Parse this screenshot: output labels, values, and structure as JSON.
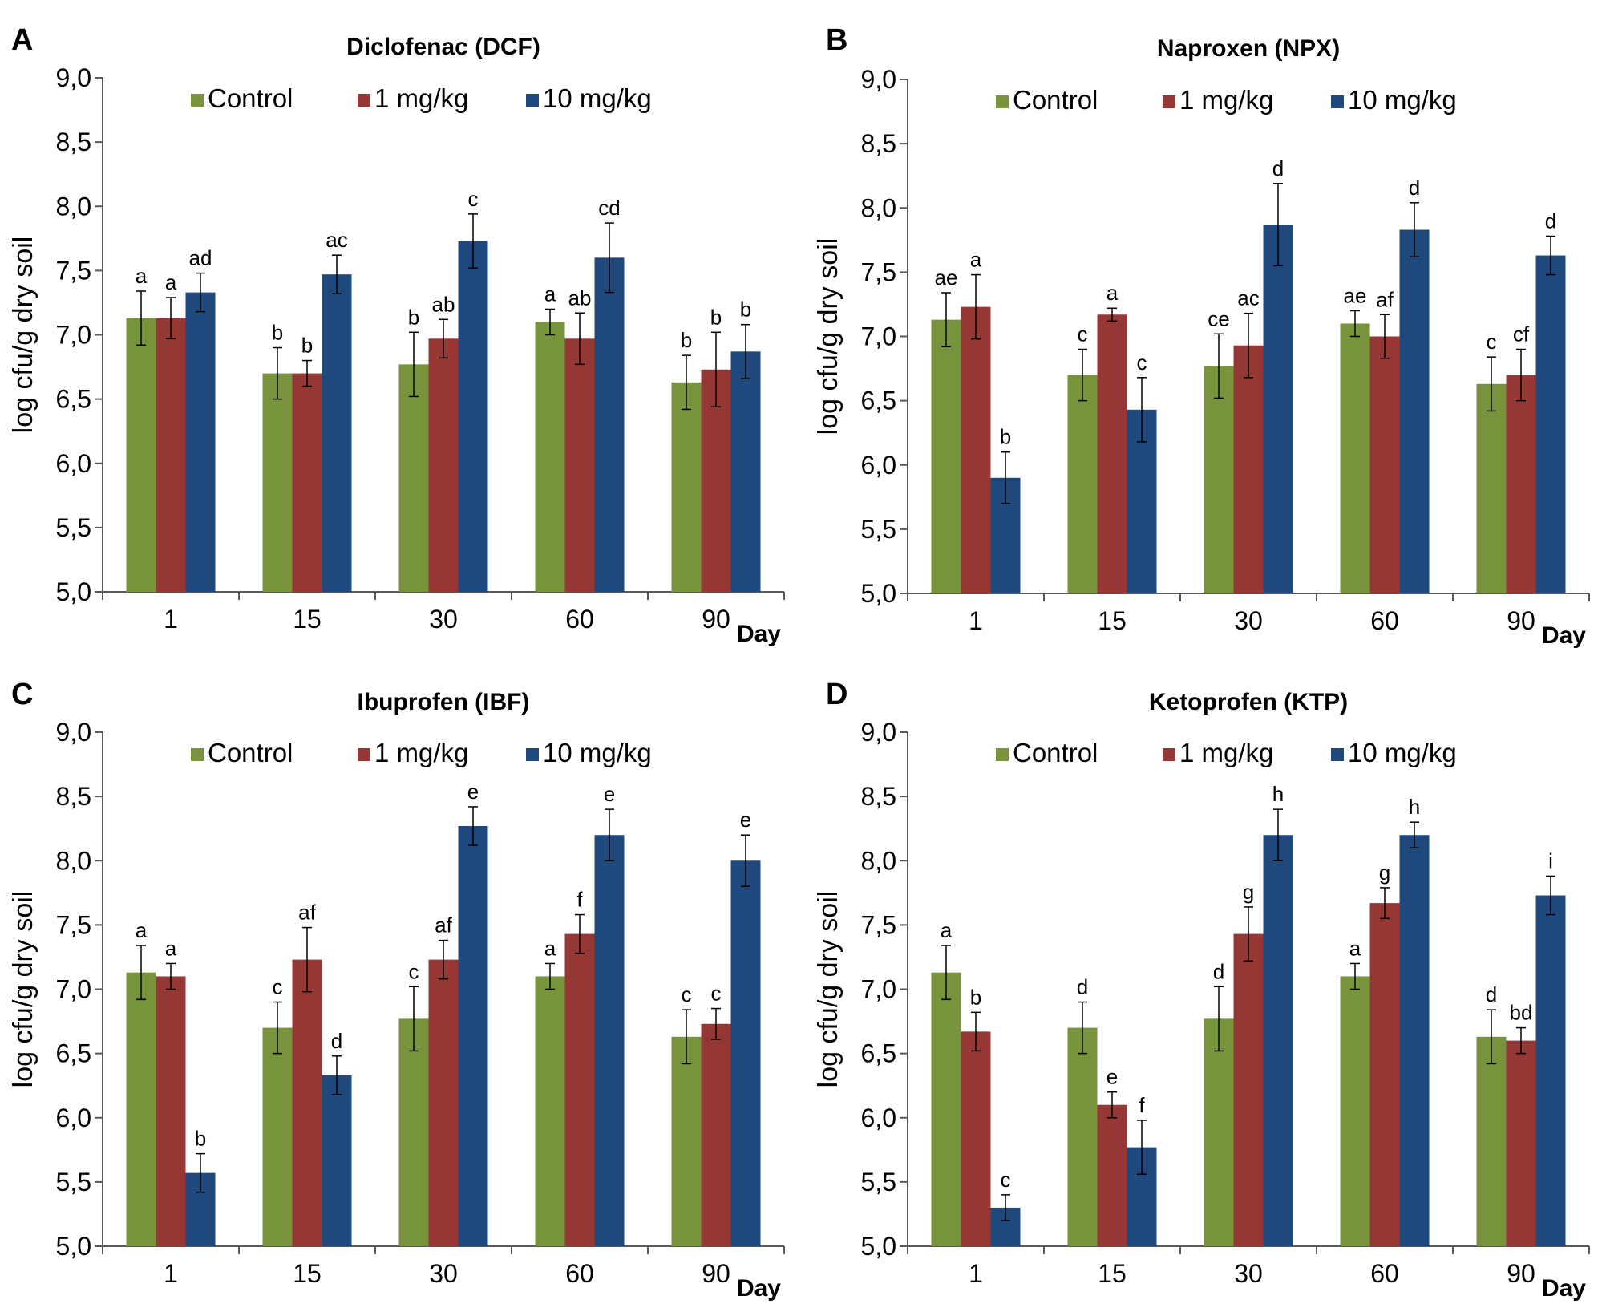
{
  "figure": {
    "colors": {
      "control": "#77933c",
      "dose_1": "#953735",
      "dose_10": "#1f497d"
    }
  },
  "chart_data": [
    {
      "type": "bar",
      "panel": "A",
      "title": "Diclofenac (DCF)",
      "xlabel": "Day",
      "ylabel": "log cfu/g dry soil",
      "ylim": [
        5.0,
        9.0
      ],
      "yticks": [
        "5,0",
        "5,5",
        "6,0",
        "6,5",
        "7,0",
        "7,5",
        "8,0",
        "8,5",
        "9,0"
      ],
      "categories": [
        "1",
        "15",
        "30",
        "60",
        "90"
      ],
      "legend_position": "top",
      "series": [
        {
          "name": "Control",
          "color": "#77933c",
          "values": [
            7.13,
            6.7,
            6.77,
            7.1,
            6.63
          ],
          "errors": [
            0.21,
            0.2,
            0.25,
            0.1,
            0.21
          ],
          "labels": [
            "a",
            "b",
            "b",
            "a",
            "b"
          ]
        },
        {
          "name": "1 mg/kg",
          "color": "#953735",
          "values": [
            7.13,
            6.7,
            6.97,
            6.97,
            6.73
          ],
          "errors": [
            0.16,
            0.1,
            0.15,
            0.2,
            0.29
          ],
          "labels": [
            "a",
            "b",
            "ab",
            "ab",
            "b"
          ]
        },
        {
          "name": "10 mg/kg",
          "color": "#1f497d",
          "values": [
            7.33,
            7.47,
            7.73,
            7.6,
            6.87
          ],
          "errors": [
            0.15,
            0.15,
            0.21,
            0.27,
            0.21
          ],
          "labels": [
            "ad",
            "ac",
            "c",
            "cd",
            "b"
          ]
        }
      ]
    },
    {
      "type": "bar",
      "panel": "B",
      "title": "Naproxen (NPX)",
      "xlabel": "Day",
      "ylabel": "log cfu/g dry soil",
      "ylim": [
        5.0,
        9.0
      ],
      "yticks": [
        "5,0",
        "5,5",
        "6,0",
        "6,5",
        "7,0",
        "7,5",
        "8,0",
        "8,5",
        "9,0"
      ],
      "categories": [
        "1",
        "15",
        "30",
        "60",
        "90"
      ],
      "legend_position": "top",
      "series": [
        {
          "name": "Control",
          "color": "#77933c",
          "values": [
            7.13,
            6.7,
            6.77,
            7.1,
            6.63
          ],
          "errors": [
            0.21,
            0.2,
            0.25,
            0.1,
            0.21
          ],
          "labels": [
            "ae",
            "c",
            "ce",
            "ae",
            "c"
          ]
        },
        {
          "name": "1 mg/kg",
          "color": "#953735",
          "values": [
            7.23,
            7.17,
            6.93,
            7.0,
            6.7
          ],
          "errors": [
            0.25,
            0.05,
            0.25,
            0.17,
            0.2
          ],
          "labels": [
            "a",
            "a",
            "ac",
            "af",
            "cf"
          ]
        },
        {
          "name": "10 mg/kg",
          "color": "#1f497d",
          "values": [
            5.9,
            6.43,
            7.87,
            7.83,
            7.63
          ],
          "errors": [
            0.2,
            0.25,
            0.32,
            0.21,
            0.15
          ],
          "labels": [
            "b",
            "c",
            "d",
            "d",
            "d"
          ]
        }
      ]
    },
    {
      "type": "bar",
      "panel": "C",
      "title": "Ibuprofen (IBF)",
      "xlabel": "Day",
      "ylabel": "log cfu/g dry soil",
      "ylim": [
        5.0,
        9.0
      ],
      "yticks": [
        "5,0",
        "5,5",
        "6,0",
        "6,5",
        "7,0",
        "7,5",
        "8,0",
        "8,5",
        "9,0"
      ],
      "categories": [
        "1",
        "15",
        "30",
        "60",
        "90"
      ],
      "legend_position": "top",
      "series": [
        {
          "name": "Control",
          "color": "#77933c",
          "values": [
            7.13,
            6.7,
            6.77,
            7.1,
            6.63
          ],
          "errors": [
            0.21,
            0.2,
            0.25,
            0.1,
            0.21
          ],
          "labels": [
            "a",
            "c",
            "c",
            "a",
            "c"
          ]
        },
        {
          "name": "1 mg/kg",
          "color": "#953735",
          "values": [
            7.1,
            7.23,
            7.23,
            7.43,
            6.73
          ],
          "errors": [
            0.1,
            0.25,
            0.15,
            0.15,
            0.12
          ],
          "labels": [
            "a",
            "af",
            "af",
            "f",
            "c"
          ]
        },
        {
          "name": "10 mg/kg",
          "color": "#1f497d",
          "values": [
            5.57,
            6.33,
            8.27,
            8.2,
            8.0
          ],
          "errors": [
            0.15,
            0.15,
            0.15,
            0.2,
            0.2
          ],
          "labels": [
            "b",
            "d",
            "e",
            "e",
            "e"
          ]
        }
      ]
    },
    {
      "type": "bar",
      "panel": "D",
      "title": "Ketoprofen (KTP)",
      "xlabel": "Day",
      "ylabel": "log cfu/g dry soil",
      "ylim": [
        5.0,
        9.0
      ],
      "yticks": [
        "5,0",
        "5,5",
        "6,0",
        "6,5",
        "7,0",
        "7,5",
        "8,0",
        "8,5",
        "9,0"
      ],
      "categories": [
        "1",
        "15",
        "30",
        "60",
        "90"
      ],
      "legend_position": "top",
      "series": [
        {
          "name": "Control",
          "color": "#77933c",
          "values": [
            7.13,
            6.7,
            6.77,
            7.1,
            6.63
          ],
          "errors": [
            0.21,
            0.2,
            0.25,
            0.1,
            0.21
          ],
          "labels": [
            "a",
            "d",
            "d",
            "a",
            "d"
          ]
        },
        {
          "name": "1 mg/kg",
          "color": "#953735",
          "values": [
            6.67,
            6.1,
            7.43,
            7.67,
            6.6
          ],
          "errors": [
            0.15,
            0.1,
            0.21,
            0.12,
            0.1
          ],
          "labels": [
            "b",
            "e",
            "g",
            "g",
            "bd"
          ]
        },
        {
          "name": "10 mg/kg",
          "color": "#1f497d",
          "values": [
            5.3,
            5.77,
            8.2,
            8.2,
            7.73
          ],
          "errors": [
            0.1,
            0.21,
            0.2,
            0.1,
            0.15
          ],
          "labels": [
            "c",
            "f",
            "h",
            "h",
            "i"
          ]
        }
      ]
    }
  ]
}
